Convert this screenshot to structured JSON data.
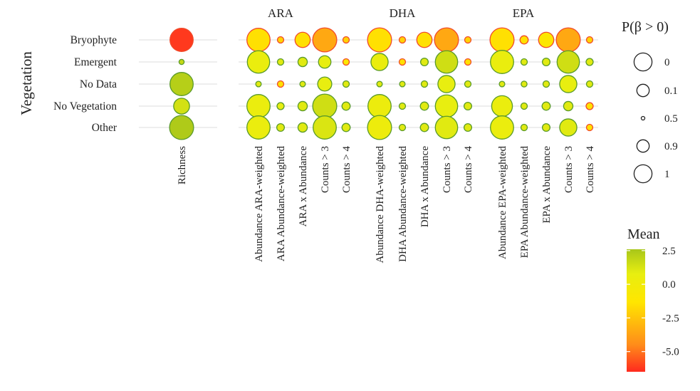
{
  "chart_data": {
    "type": "bubble-matrix",
    "y_axis_title": "Vegetation",
    "rows": [
      "Bryophyte",
      "Emergent",
      "No Data",
      "No Vegetation",
      "Other"
    ],
    "richness": {
      "label": "Richness",
      "mean": [
        -6.2,
        1.8,
        2.2,
        1.4,
        2.4
      ],
      "prob": [
        0.98,
        0.45,
        0.98,
        0.88,
        0.99
      ]
    },
    "panels": [
      {
        "title": "ARA",
        "columns": [
          "Abundance ARA-weighted",
          "ARA Abundance-weighted",
          "ARA x Abundance",
          "Counts > 3",
          "Counts > 4"
        ],
        "mean": [
          [
            -1.5,
            -2.0,
            -1.5,
            -3.5,
            -2.0
          ],
          [
            0.6,
            1.0,
            1.0,
            0.8,
            -1.0
          ],
          [
            1.0,
            -1.5,
            1.0,
            0.8,
            1.0
          ],
          [
            0.5,
            0.8,
            1.0,
            1.5,
            1.0
          ],
          [
            0.5,
            1.0,
            1.0,
            1.2,
            1.0
          ]
        ],
        "prob": [
          [
            0.98,
            0.65,
            0.87,
            0.99,
            0.65
          ],
          [
            0.97,
            0.65,
            0.75,
            0.82,
            0.65
          ],
          [
            0.6,
            0.65,
            0.6,
            0.85,
            0.65
          ],
          [
            0.98,
            0.68,
            0.75,
            0.99,
            0.72
          ],
          [
            0.98,
            0.7,
            0.75,
            0.98,
            0.72
          ]
        ]
      },
      {
        "title": "DHA",
        "columns": [
          "Abundance DHA-weighted",
          "DHA Abundance-weighted",
          "DHA x Abundance",
          "Counts > 3",
          "Counts > 4"
        ],
        "mean": [
          [
            -1.5,
            -2.0,
            -1.5,
            -3.5,
            -2.0
          ],
          [
            0.6,
            -1.5,
            1.0,
            1.5,
            -1.5
          ],
          [
            1.0,
            1.0,
            1.0,
            0.8,
            1.0
          ],
          [
            0.4,
            1.0,
            1.0,
            0.8,
            1.0
          ],
          [
            0.3,
            1.0,
            1.0,
            1.0,
            1.0
          ]
        ],
        "prob": [
          [
            0.99,
            0.65,
            0.87,
            0.99,
            0.65
          ],
          [
            0.9,
            0.65,
            0.7,
            0.97,
            0.65
          ],
          [
            0.6,
            0.6,
            0.65,
            0.9,
            0.65
          ],
          [
            0.98,
            0.65,
            0.72,
            0.97,
            0.7
          ],
          [
            0.99,
            0.65,
            0.72,
            0.97,
            0.7
          ]
        ]
      },
      {
        "title": "EPA",
        "columns": [
          "Abundance EPA-weighted",
          "EPA Abundance-weighted",
          "EPA x Abundance",
          "Counts > 3",
          "Counts > 4"
        ],
        "mean": [
          [
            -1.5,
            -1.5,
            -1.0,
            -3.5,
            -2.0
          ],
          [
            0.6,
            1.0,
            1.0,
            1.5,
            1.0
          ],
          [
            1.0,
            1.0,
            1.0,
            0.8,
            1.0
          ],
          [
            0.5,
            1.0,
            1.0,
            1.0,
            -1.5
          ],
          [
            0.5,
            1.0,
            1.0,
            1.0,
            -1.5
          ]
        ],
        "prob": [
          [
            0.99,
            0.72,
            0.87,
            0.99,
            0.65
          ],
          [
            0.98,
            0.65,
            0.7,
            0.97,
            0.68
          ],
          [
            0.6,
            0.62,
            0.65,
            0.9,
            0.65
          ],
          [
            0.95,
            0.65,
            0.72,
            0.75,
            0.68
          ],
          [
            0.98,
            0.65,
            0.7,
            0.9,
            0.65
          ]
        ]
      }
    ],
    "size_legend": {
      "title": "P(β > 0)",
      "labels": [
        "0",
        "0.1",
        "0.5",
        "0.9",
        "1"
      ],
      "values": [
        0,
        0.1,
        0.5,
        0.9,
        1
      ]
    },
    "color_legend": {
      "title": "Mean",
      "tick_labels": [
        "2.5",
        "0.0",
        "-2.5",
        "-5.0"
      ],
      "tick_values": [
        2.5,
        0.0,
        -2.5,
        -5.0
      ],
      "range": [
        -6.5,
        2.6
      ],
      "colors": [
        "#ff2a1e",
        "#ff8c1a",
        "#ffe600",
        "#e8ee10",
        "#a8c61a"
      ]
    }
  }
}
